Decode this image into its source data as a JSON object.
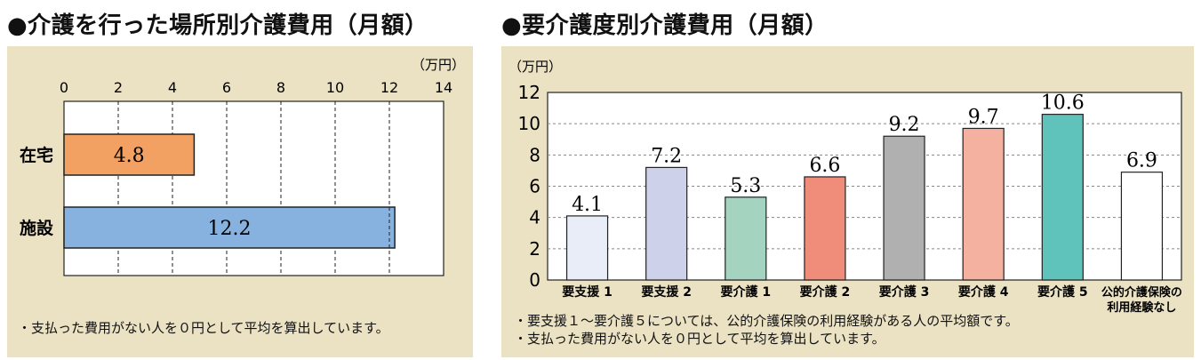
{
  "left": {
    "title": "●介護を行った場所別介護費用（月額）",
    "note": "・支払った費用がない人を０円として平均を算出しています。",
    "chart_data": {
      "type": "bar",
      "orientation": "horizontal",
      "unit": "（万円）",
      "xlim": [
        0,
        14
      ],
      "ticks": [
        "0",
        "2",
        "4",
        "6",
        "8",
        "10",
        "12",
        "14"
      ],
      "categories": [
        "在宅",
        "施設"
      ],
      "values": [
        4.8,
        12.2
      ],
      "labels": [
        "4.8",
        "12.2"
      ],
      "colors": [
        "#f3a163",
        "#87b2df"
      ],
      "grid": "dashed vertical"
    }
  },
  "right": {
    "title": "●要介護度別介護費用（月額）",
    "notes": [
      "・要支援１～要介護５については、公的介護保険の利用経験がある人の平均額です。",
      "・支払った費用がない人を０円として平均を算出しています。"
    ],
    "chart_data": {
      "type": "bar",
      "unit": "（万円）",
      "ylim": [
        0,
        12
      ],
      "ticks": [
        "0",
        "2",
        "4",
        "6",
        "8",
        "10",
        "12"
      ],
      "categories": [
        "要支援 1",
        "要支援 2",
        "要介護 1",
        "要介護 2",
        "要介護 3",
        "要介護 4",
        "要介護 5",
        "公的介護保険の|利用経験なし"
      ],
      "values": [
        4.1,
        7.2,
        5.3,
        6.6,
        9.2,
        9.7,
        10.6,
        6.9
      ],
      "labels": [
        "4.1",
        "7.2",
        "5.3",
        "6.6",
        "9.2",
        "9.7",
        "10.6",
        "6.9"
      ],
      "colors": [
        "#e9edf8",
        "#cdd1ea",
        "#a4d4c0",
        "#ef8c7a",
        "#b0b0b0",
        "#f5b1a0",
        "#5fc3bc",
        "#ffffff"
      ],
      "grid": "dashed horizontal"
    }
  }
}
